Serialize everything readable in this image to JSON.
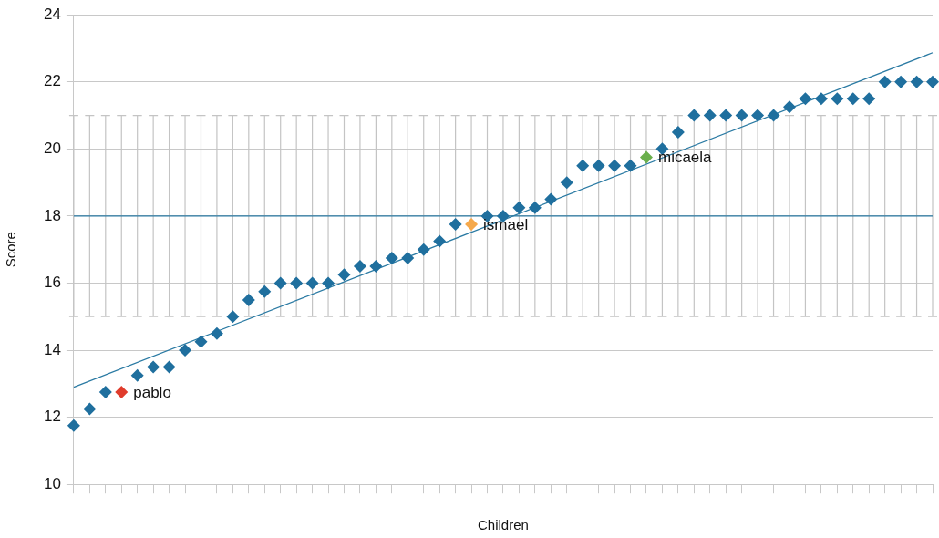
{
  "chart_data": {
    "type": "scatter",
    "xlabel": "Children",
    "ylabel": "Score",
    "categories": [
      null,
      null,
      null,
      null,
      null,
      null,
      null,
      null,
      null,
      null,
      null,
      null,
      null,
      null,
      null,
      null,
      null,
      null,
      null,
      null,
      null,
      null,
      null,
      null,
      null,
      null,
      null,
      null,
      null,
      null,
      null,
      null,
      null,
      null,
      null,
      null,
      null,
      null,
      null,
      null,
      null,
      null,
      null,
      null,
      null,
      null,
      null,
      null,
      null,
      null,
      null,
      null,
      null,
      null,
      null
    ],
    "ylim": [
      10,
      24
    ],
    "yticks": [
      10,
      12,
      14,
      16,
      18,
      20,
      22,
      24
    ],
    "grid": "y",
    "legend": false,
    "marker": "diamond",
    "series": [
      {
        "type": "line",
        "color": "#2a7aa3",
        "marker": "none",
        "values": [
          18,
          18,
          18,
          18,
          18,
          18,
          18,
          18,
          18,
          18,
          18,
          18,
          18,
          18,
          18,
          18,
          18,
          18,
          18,
          18,
          18,
          18,
          18,
          18,
          18,
          18,
          18,
          18,
          18,
          18,
          18,
          18,
          18,
          18,
          18,
          18,
          18,
          18,
          18,
          18,
          18,
          18,
          18,
          18,
          18,
          18,
          18,
          18,
          18,
          18,
          18,
          18,
          18,
          18,
          18
        ],
        "errors": [
          3,
          3,
          3,
          3,
          3,
          3,
          3,
          3,
          3,
          3,
          3,
          3,
          3,
          3,
          3,
          3,
          3,
          3,
          3,
          3,
          3,
          3,
          3,
          3,
          3,
          3,
          3,
          3,
          3,
          3,
          3,
          3,
          3,
          3,
          3,
          3,
          3,
          3,
          3,
          3,
          3,
          3,
          3,
          3,
          3,
          3,
          3,
          3,
          3,
          3,
          3,
          3,
          3,
          3,
          3
        ]
      },
      {
        "type": "line",
        "color": "#2a7aa3",
        "marker": "none",
        "values": [
          12.9,
          null,
          null,
          null,
          null,
          null,
          null,
          null,
          null,
          null,
          null,
          null,
          null,
          null,
          null,
          null,
          null,
          null,
          null,
          null,
          null,
          null,
          null,
          null,
          null,
          null,
          null,
          null,
          null,
          null,
          null,
          null,
          null,
          null,
          null,
          null,
          null,
          null,
          null,
          null,
          null,
          null,
          null,
          null,
          null,
          null,
          null,
          null,
          null,
          null,
          null,
          null,
          null,
          null,
          22.87
        ]
      },
      {
        "color": "#1f6f9e",
        "colors": [
          "#1f6f9e",
          "#1f6f9e",
          "#1f6f9e",
          "#e03c2c",
          "#1f6f9e",
          "#1f6f9e",
          "#1f6f9e",
          "#1f6f9e",
          "#1f6f9e",
          "#1f6f9e",
          "#1f6f9e",
          "#1f6f9e",
          "#1f6f9e",
          "#1f6f9e",
          "#1f6f9e",
          "#1f6f9e",
          "#1f6f9e",
          "#1f6f9e",
          "#1f6f9e",
          "#1f6f9e",
          "#1f6f9e",
          "#1f6f9e",
          "#1f6f9e",
          "#1f6f9e",
          "#1f6f9e",
          "#f5a94c",
          "#1f6f9e",
          "#1f6f9e",
          "#1f6f9e",
          "#1f6f9e",
          "#1f6f9e",
          "#1f6f9e",
          "#1f6f9e",
          "#1f6f9e",
          "#1f6f9e",
          "#1f6f9e",
          "#6aaf4c",
          "#1f6f9e",
          "#1f6f9e",
          "#1f6f9e",
          "#1f6f9e",
          "#1f6f9e",
          "#1f6f9e",
          "#1f6f9e",
          "#1f6f9e",
          "#1f6f9e",
          "#1f6f9e",
          "#1f6f9e",
          "#1f6f9e",
          "#1f6f9e",
          "#1f6f9e",
          "#1f6f9e",
          "#1f6f9e",
          "#1f6f9e",
          "#1f6f9e"
        ],
        "values": [
          11.75,
          12.25,
          12.75,
          12.75,
          13.25,
          13.5,
          13.5,
          14,
          14.25,
          14.5,
          15,
          15.5,
          15.75,
          16,
          16,
          16,
          16,
          16.25,
          16.5,
          16.5,
          16.75,
          16.75,
          17,
          17.25,
          17.75,
          17.75,
          18,
          18,
          18.25,
          18.25,
          18.5,
          19,
          19.5,
          19.5,
          19.5,
          19.5,
          19.75,
          20,
          20.5,
          21,
          21,
          21,
          21,
          21,
          21,
          21.25,
          21.5,
          21.5,
          21.5,
          21.5,
          21.5,
          22,
          22,
          22,
          22
        ],
        "value_labels": [
          null,
          null,
          null,
          "pablo",
          null,
          null,
          null,
          null,
          null,
          null,
          null,
          null,
          null,
          null,
          null,
          null,
          null,
          null,
          null,
          null,
          null,
          null,
          null,
          null,
          null,
          "ismael",
          null,
          null,
          null,
          null,
          null,
          null,
          null,
          null,
          null,
          null,
          "micaela",
          null,
          null,
          null,
          null,
          null,
          null,
          null,
          null,
          null,
          null,
          null,
          null,
          null,
          null,
          null,
          null,
          null,
          null
        ]
      }
    ]
  }
}
